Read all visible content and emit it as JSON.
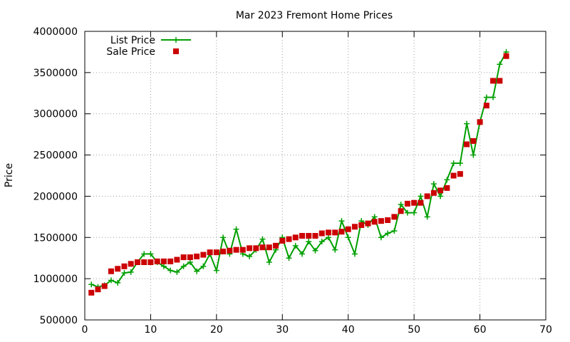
{
  "chart_data": {
    "type": "line",
    "title": "Mar 2023 Fremont Home Prices",
    "xlabel": "",
    "ylabel": "Price",
    "xlim": [
      0,
      70
    ],
    "ylim": [
      500000,
      4000000
    ],
    "x_ticks": [
      0,
      10,
      20,
      30,
      40,
      50,
      60,
      70
    ],
    "y_ticks": [
      500000,
      1000000,
      1500000,
      2000000,
      2500000,
      3000000,
      3500000,
      4000000
    ],
    "grid": true,
    "legend_position": "top-left",
    "series": [
      {
        "name": "List Price",
        "style": "line+cross",
        "color": "#00a000",
        "x": [
          1,
          2,
          3,
          4,
          5,
          6,
          7,
          8,
          9,
          10,
          11,
          12,
          13,
          14,
          15,
          16,
          17,
          18,
          19,
          20,
          21,
          22,
          23,
          24,
          25,
          26,
          27,
          28,
          29,
          30,
          31,
          32,
          33,
          34,
          35,
          36,
          37,
          38,
          39,
          40,
          41,
          42,
          43,
          44,
          45,
          46,
          47,
          48,
          49,
          50,
          51,
          52,
          53,
          54,
          55,
          56,
          57,
          58,
          59,
          60,
          61,
          62,
          63,
          64
        ],
        "y": [
          930000,
          900000,
          920000,
          980000,
          950000,
          1070000,
          1080000,
          1200000,
          1300000,
          1300000,
          1200000,
          1150000,
          1100000,
          1080000,
          1150000,
          1200000,
          1090000,
          1150000,
          1300000,
          1100000,
          1500000,
          1300000,
          1600000,
          1300000,
          1270000,
          1350000,
          1480000,
          1200000,
          1350000,
          1500000,
          1250000,
          1400000,
          1300000,
          1450000,
          1340000,
          1450000,
          1500000,
          1350000,
          1700000,
          1500000,
          1300000,
          1700000,
          1650000,
          1750000,
          1500000,
          1550000,
          1580000,
          1900000,
          1800000,
          1800000,
          2000000,
          1750000,
          2150000,
          2000000,
          2200000,
          2400000,
          2400000,
          2880000,
          2500000,
          2900000,
          3200000,
          3200000,
          3600000,
          3750000
        ]
      },
      {
        "name": "Sale Price",
        "style": "square",
        "color": "#cc0000",
        "x": [
          1,
          2,
          3,
          4,
          5,
          6,
          7,
          8,
          9,
          10,
          11,
          12,
          13,
          14,
          15,
          16,
          17,
          18,
          19,
          20,
          21,
          22,
          23,
          24,
          25,
          26,
          27,
          28,
          29,
          30,
          31,
          32,
          33,
          34,
          35,
          36,
          37,
          38,
          39,
          40,
          41,
          42,
          43,
          44,
          45,
          46,
          47,
          48,
          49,
          50,
          51,
          52,
          53,
          54,
          55,
          56,
          57,
          58,
          59,
          60,
          61,
          62,
          63,
          64
        ],
        "y": [
          830000,
          870000,
          910000,
          1090000,
          1120000,
          1150000,
          1180000,
          1200000,
          1200000,
          1200000,
          1210000,
          1210000,
          1210000,
          1230000,
          1260000,
          1260000,
          1270000,
          1290000,
          1320000,
          1320000,
          1330000,
          1340000,
          1350000,
          1350000,
          1370000,
          1370000,
          1380000,
          1380000,
          1400000,
          1460000,
          1480000,
          1500000,
          1520000,
          1520000,
          1520000,
          1550000,
          1560000,
          1560000,
          1570000,
          1600000,
          1630000,
          1650000,
          1670000,
          1690000,
          1700000,
          1710000,
          1750000,
          1820000,
          1910000,
          1920000,
          1920000,
          2000000,
          2040000,
          2070000,
          2100000,
          2250000,
          2270000,
          2630000,
          2670000,
          2900000,
          3100000,
          3400000,
          3400000,
          3700000
        ]
      }
    ]
  }
}
